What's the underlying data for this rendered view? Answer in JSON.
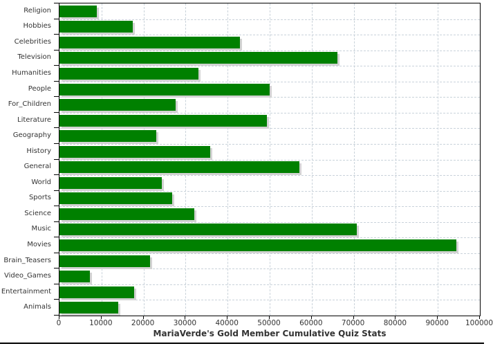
{
  "title": "MariaVerde's Gold Member Cumulative Quiz Stats",
  "chart_data": {
    "type": "bar",
    "orientation": "horizontal",
    "title": "MariaVerde's Gold Member Cumulative Quiz Stats",
    "xlabel": "",
    "ylabel": "",
    "categories": [
      "Religion",
      "Hobbies",
      "Celebrities",
      "Television",
      "Humanities",
      "People",
      "For_Children",
      "Literature",
      "Geography",
      "History",
      "General",
      "World",
      "Sports",
      "Science",
      "Music",
      "Movies",
      "Brain_Teasers",
      "Video_Games",
      "Entertainment",
      "Animals"
    ],
    "values": [
      8800,
      17500,
      43000,
      66200,
      33100,
      50000,
      27600,
      49400,
      23100,
      35800,
      57000,
      24300,
      26800,
      32000,
      70800,
      94400,
      21500,
      7200,
      17700,
      13900
    ],
    "xlim": [
      0,
      100000
    ],
    "x_ticks": [
      0,
      10000,
      20000,
      30000,
      40000,
      50000,
      60000,
      70000,
      80000,
      90000,
      100000
    ],
    "grid": true,
    "legend": "none",
    "bar_color": "#008000",
    "shadow_color": "#d3d3d3",
    "gridline_color": "#c9d2da",
    "axis_color": "#000000",
    "text_color": "#333333"
  }
}
